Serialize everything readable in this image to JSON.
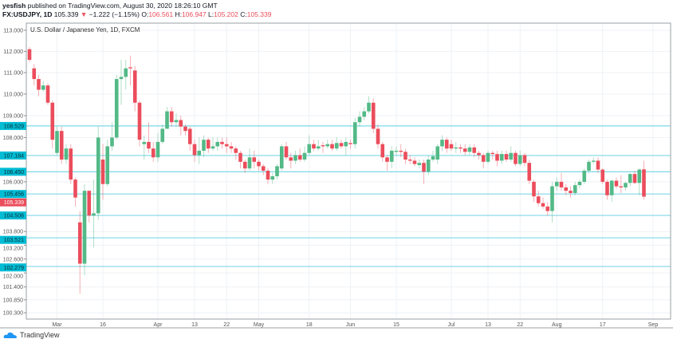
{
  "header": {
    "author": "yesfish",
    "published": "published on TradingView.com, August 30, 2020 18:26:10 GMT",
    "symbol": "FX:USDJPY, 1D",
    "last": "105.339",
    "change_arrow": "▼",
    "change": "−1.222 (−1.15%)",
    "o_label": "O:",
    "o": "106.561",
    "h_label": "H:",
    "h": "106.947",
    "l_label": "L:",
    "l": "105.202",
    "c_label": "C:",
    "c": "105.339"
  },
  "footer": {
    "brand": "TradingView"
  },
  "colors": {
    "up": "#53b987",
    "down": "#eb4d5c",
    "level": "#7fd8e6",
    "level_label": "#00bcd4",
    "grid": "#eef1f5",
    "current": "#eb4d5c"
  },
  "chart_data": {
    "type": "candlestick",
    "title": "U.S. Dollar / Japanese Yen, 1D, FXCM",
    "yscale": "log",
    "ylim": [
      100.1,
      113.3
    ],
    "y_ticks": [
      "113.000",
      "112.000",
      "111.000",
      "110.000",
      "109.000",
      "108.000",
      "106.000",
      "103.800",
      "103.200",
      "102.600",
      "102.000",
      "101.400",
      "100.850",
      "100.300"
    ],
    "x_ticks": [
      {
        "label": "Mar",
        "bar": 6
      },
      {
        "label": "16",
        "bar": 16
      },
      {
        "label": "Apr",
        "bar": 28
      },
      {
        "label": "13",
        "bar": 36
      },
      {
        "label": "22",
        "bar": 43
      },
      {
        "label": "May",
        "bar": 50
      },
      {
        "label": "18",
        "bar": 61
      },
      {
        "label": "Jun",
        "bar": 70
      },
      {
        "label": "15",
        "bar": 80
      },
      {
        "label": "Jul",
        "bar": 92
      },
      {
        "label": "13",
        "bar": 100
      },
      {
        "label": "22",
        "bar": 107
      },
      {
        "label": "Aug",
        "bar": 115
      },
      {
        "label": "17",
        "bar": 125
      },
      {
        "label": "Sep",
        "bar": 136
      }
    ],
    "levels": [
      "108.529",
      "107.184",
      "106.450",
      "105.456",
      "104.506",
      "103.521",
      "102.279"
    ],
    "current_price": "105.339",
    "ohlc": [
      [
        112.1,
        112.2,
        111.5,
        111.6
      ],
      [
        111.2,
        111.4,
        110.4,
        110.7
      ],
      [
        110.7,
        110.9,
        109.9,
        110.2
      ],
      [
        110.2,
        110.6,
        110.1,
        110.4
      ],
      [
        110.4,
        110.5,
        109.5,
        109.6
      ],
      [
        109.6,
        109.7,
        107.5,
        107.9
      ],
      [
        107.3,
        108.5,
        107.2,
        108.3
      ],
      [
        108.3,
        108.5,
        106.8,
        107.0
      ],
      [
        107.0,
        107.7,
        106.8,
        107.5
      ],
      [
        107.5,
        107.7,
        105.9,
        106.1
      ],
      [
        106.1,
        106.2,
        104.9,
        105.3
      ],
      [
        104.2,
        104.7,
        101.1,
        102.4
      ],
      [
        102.4,
        105.9,
        101.9,
        105.6
      ],
      [
        105.6,
        105.6,
        104.2,
        104.5
      ],
      [
        104.5,
        106.1,
        103.1,
        104.6
      ],
      [
        104.6,
        108.5,
        104.3,
        108.0
      ],
      [
        107.0,
        107.7,
        105.2,
        105.9
      ],
      [
        105.9,
        107.9,
        105.8,
        107.6
      ],
      [
        107.6,
        108.7,
        107.4,
        108.0
      ],
      [
        108.0,
        110.9,
        107.9,
        110.7
      ],
      [
        110.7,
        111.6,
        109.5,
        110.8
      ],
      [
        110.8,
        111.6,
        110.2,
        111.2
      ],
      [
        111.25,
        111.8,
        110.4,
        111.2
      ],
      [
        111.1,
        111.3,
        109.2,
        109.6
      ],
      [
        109.6,
        109.7,
        107.6,
        107.9
      ],
      [
        107.7,
        108.1,
        107.0,
        107.8
      ],
      [
        107.8,
        108.7,
        107.3,
        107.5
      ],
      [
        107.5,
        107.8,
        106.9,
        107.1
      ],
      [
        107.1,
        108.2,
        106.9,
        107.8
      ],
      [
        107.8,
        108.6,
        107.7,
        108.4
      ],
      [
        108.4,
        109.4,
        108.4,
        109.2
      ],
      [
        109.2,
        109.4,
        108.5,
        108.7
      ],
      [
        108.7,
        109.1,
        108.5,
        108.8
      ],
      [
        108.8,
        109.0,
        108.1,
        108.5
      ],
      [
        108.5,
        108.6,
        108.1,
        108.3
      ],
      [
        108.4,
        108.5,
        107.4,
        107.7
      ],
      [
        107.7,
        107.9,
        106.9,
        107.2
      ],
      [
        107.2,
        108.0,
        106.8,
        107.4
      ],
      [
        107.4,
        108.1,
        107.1,
        107.9
      ],
      [
        107.9,
        108.0,
        107.3,
        107.5
      ],
      [
        107.5,
        108.0,
        107.4,
        107.6
      ],
      [
        107.6,
        108.0,
        107.4,
        107.8
      ],
      [
        107.8,
        108.0,
        107.5,
        107.7
      ],
      [
        107.7,
        108.0,
        107.3,
        107.6
      ],
      [
        107.6,
        107.8,
        107.3,
        107.5
      ],
      [
        107.5,
        107.6,
        107.0,
        107.3
      ],
      [
        107.3,
        107.4,
        106.6,
        106.9
      ],
      [
        106.9,
        107.0,
        106.4,
        106.6
      ],
      [
        106.6,
        107.5,
        106.5,
        107.1
      ],
      [
        107.1,
        107.4,
        106.6,
        106.9
      ],
      [
        106.9,
        107.0,
        106.5,
        106.7
      ],
      [
        106.7,
        106.8,
        106.3,
        106.5
      ],
      [
        106.5,
        106.6,
        105.9,
        106.1
      ],
      [
        106.1,
        106.4,
        105.9,
        106.25
      ],
      [
        106.25,
        106.8,
        106.1,
        106.7
      ],
      [
        106.6,
        107.7,
        106.5,
        107.6
      ],
      [
        107.6,
        107.8,
        107.0,
        107.1
      ],
      [
        107.1,
        107.3,
        106.6,
        106.95
      ],
      [
        106.95,
        107.4,
        106.8,
        107.2
      ],
      [
        107.2,
        107.5,
        106.9,
        107.0
      ],
      [
        107.0,
        107.6,
        106.9,
        107.3
      ],
      [
        107.3,
        108.1,
        107.2,
        107.7
      ],
      [
        107.7,
        107.9,
        107.4,
        107.5
      ],
      [
        107.5,
        107.9,
        107.4,
        107.6
      ],
      [
        107.65,
        107.8,
        107.3,
        107.6
      ],
      [
        107.6,
        107.9,
        107.5,
        107.7
      ],
      [
        107.7,
        107.9,
        107.4,
        107.5
      ],
      [
        107.5,
        108.0,
        107.4,
        107.75
      ],
      [
        107.75,
        107.9,
        107.5,
        107.6
      ],
      [
        107.6,
        108.0,
        107.2,
        107.8
      ],
      [
        107.75,
        107.9,
        107.5,
        107.7
      ],
      [
        107.7,
        108.9,
        107.5,
        108.7
      ],
      [
        108.7,
        109.2,
        108.5,
        108.95
      ],
      [
        108.95,
        109.4,
        108.8,
        109.2
      ],
      [
        109.2,
        109.9,
        109.1,
        109.6
      ],
      [
        109.6,
        109.8,
        108.2,
        108.4
      ],
      [
        108.4,
        108.6,
        107.5,
        107.7
      ],
      [
        107.7,
        107.8,
        106.9,
        107.1
      ],
      [
        107.1,
        107.2,
        106.5,
        106.9
      ],
      [
        106.9,
        107.6,
        106.6,
        107.4
      ],
      [
        107.35,
        107.6,
        107.2,
        107.4
      ],
      [
        107.4,
        107.7,
        107.1,
        107.35
      ],
      [
        107.35,
        107.5,
        106.8,
        107.0
      ],
      [
        107.0,
        107.2,
        106.8,
        106.95
      ],
      [
        106.95,
        107.1,
        106.7,
        106.8
      ],
      [
        106.75,
        107.0,
        106.6,
        106.85
      ],
      [
        106.85,
        107.0,
        105.9,
        106.45
      ],
      [
        106.45,
        107.2,
        106.3,
        107.0
      ],
      [
        107.0,
        107.4,
        106.9,
        107.15
      ],
      [
        107.0,
        107.7,
        106.8,
        107.6
      ],
      [
        107.6,
        108.1,
        107.4,
        107.9
      ],
      [
        107.9,
        108.0,
        107.3,
        107.5
      ],
      [
        107.7,
        107.9,
        107.4,
        107.5
      ],
      [
        107.5,
        107.8,
        107.3,
        107.55
      ],
      [
        107.55,
        107.7,
        107.3,
        107.5
      ],
      [
        107.5,
        107.7,
        107.2,
        107.35
      ],
      [
        107.35,
        107.7,
        107.2,
        107.55
      ],
      [
        107.55,
        107.7,
        107.1,
        107.3
      ],
      [
        107.3,
        107.4,
        107.0,
        107.2
      ],
      [
        107.2,
        107.3,
        106.6,
        106.9
      ],
      [
        106.9,
        107.4,
        106.8,
        107.3
      ],
      [
        107.3,
        107.4,
        107.0,
        107.25
      ],
      [
        107.25,
        107.4,
        106.7,
        106.95
      ],
      [
        106.95,
        107.4,
        106.8,
        107.25
      ],
      [
        107.25,
        107.4,
        106.9,
        107.0
      ],
      [
        107.0,
        107.6,
        106.9,
        107.3
      ],
      [
        107.3,
        107.4,
        106.7,
        106.8
      ],
      [
        106.8,
        107.4,
        106.7,
        107.2
      ],
      [
        107.2,
        107.3,
        106.7,
        106.85
      ],
      [
        106.85,
        107.0,
        105.9,
        106.05
      ],
      [
        106.0,
        106.1,
        105.1,
        105.35
      ],
      [
        105.35,
        105.6,
        104.9,
        105.05
      ],
      [
        105.05,
        105.3,
        104.8,
        104.9
      ],
      [
        104.9,
        105.1,
        104.5,
        104.7
      ],
      [
        104.7,
        106.0,
        104.2,
        105.8
      ],
      [
        105.8,
        106.2,
        105.6,
        106.0
      ],
      [
        106.0,
        106.4,
        105.6,
        105.75
      ],
      [
        105.75,
        105.9,
        105.4,
        105.6
      ],
      [
        105.6,
        105.8,
        105.3,
        105.5
      ],
      [
        105.5,
        106.0,
        105.4,
        105.85
      ],
      [
        105.85,
        106.1,
        105.7,
        106.0
      ],
      [
        106.0,
        106.6,
        105.9,
        106.5
      ],
      [
        106.5,
        107.0,
        106.4,
        106.9
      ],
      [
        106.9,
        107.1,
        106.8,
        106.95
      ],
      [
        106.95,
        107.1,
        106.4,
        106.55
      ],
      [
        106.55,
        106.6,
        105.9,
        106.0
      ],
      [
        106.0,
        106.1,
        105.2,
        105.4
      ],
      [
        105.4,
        106.1,
        105.1,
        106.05
      ],
      [
        106.05,
        106.2,
        105.7,
        105.8
      ],
      [
        105.8,
        106.3,
        105.5,
        105.75
      ],
      [
        105.75,
        106.0,
        105.6,
        105.95
      ],
      [
        105.95,
        106.4,
        105.8,
        106.35
      ],
      [
        106.35,
        106.5,
        105.9,
        105.95
      ],
      [
        105.95,
        106.6,
        105.4,
        106.55
      ],
      [
        106.561,
        106.947,
        105.202,
        105.339
      ]
    ]
  }
}
